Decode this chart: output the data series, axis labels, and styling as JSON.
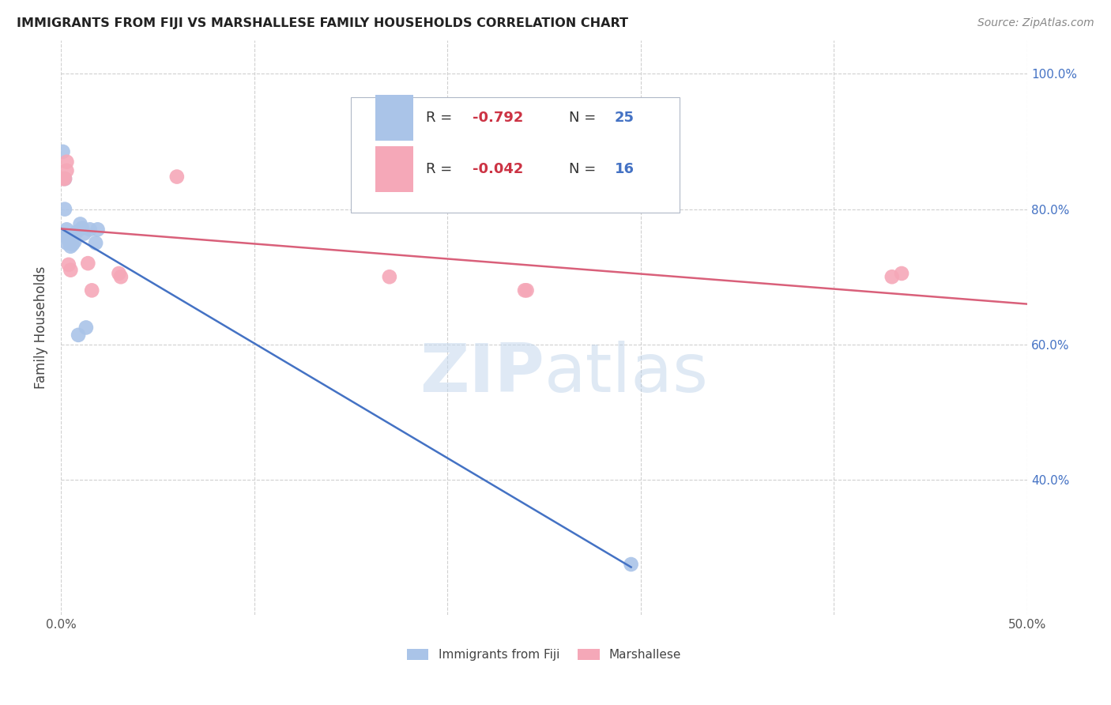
{
  "title": "IMMIGRANTS FROM FIJI VS MARSHALLESE FAMILY HOUSEHOLDS CORRELATION CHART",
  "source": "Source: ZipAtlas.com",
  "ylabel": "Family Households",
  "xlim": [
    0.0,
    0.5
  ],
  "ylim": [
    0.2,
    1.05
  ],
  "fiji_color": "#aac4e8",
  "marshallese_color": "#f5a8b8",
  "fiji_line_color": "#4472c4",
  "marshallese_line_color": "#d9607a",
  "fiji_R": -0.792,
  "fiji_N": 25,
  "marshallese_R": -0.042,
  "marshallese_N": 16,
  "fiji_scatter_x": [
    0.001,
    0.002,
    0.002,
    0.003,
    0.003,
    0.003,
    0.004,
    0.004,
    0.005,
    0.005,
    0.005,
    0.006,
    0.006,
    0.007,
    0.007,
    0.008,
    0.009,
    0.01,
    0.011,
    0.012,
    0.013,
    0.015,
    0.018,
    0.019,
    0.295
  ],
  "fiji_scatter_y": [
    0.885,
    0.845,
    0.8,
    0.76,
    0.75,
    0.77,
    0.76,
    0.755,
    0.76,
    0.75,
    0.745,
    0.758,
    0.748,
    0.762,
    0.752,
    0.766,
    0.614,
    0.778,
    0.772,
    0.764,
    0.625,
    0.77,
    0.75,
    0.77,
    0.275
  ],
  "marshallese_scatter_x": [
    0.001,
    0.002,
    0.003,
    0.003,
    0.004,
    0.005,
    0.014,
    0.016,
    0.03,
    0.031,
    0.06,
    0.17,
    0.43,
    0.435,
    0.24,
    0.241
  ],
  "marshallese_scatter_y": [
    0.845,
    0.845,
    0.87,
    0.857,
    0.718,
    0.71,
    0.72,
    0.68,
    0.705,
    0.7,
    0.848,
    0.7,
    0.7,
    0.705,
    0.68,
    0.68
  ],
  "watermark_zip": "ZIP",
  "watermark_atlas": "atlas",
  "background_color": "#ffffff",
  "grid_color": "#d0d0d0",
  "legend_box_color": "#e8eef8",
  "legend_border_color": "#b0c0d8"
}
